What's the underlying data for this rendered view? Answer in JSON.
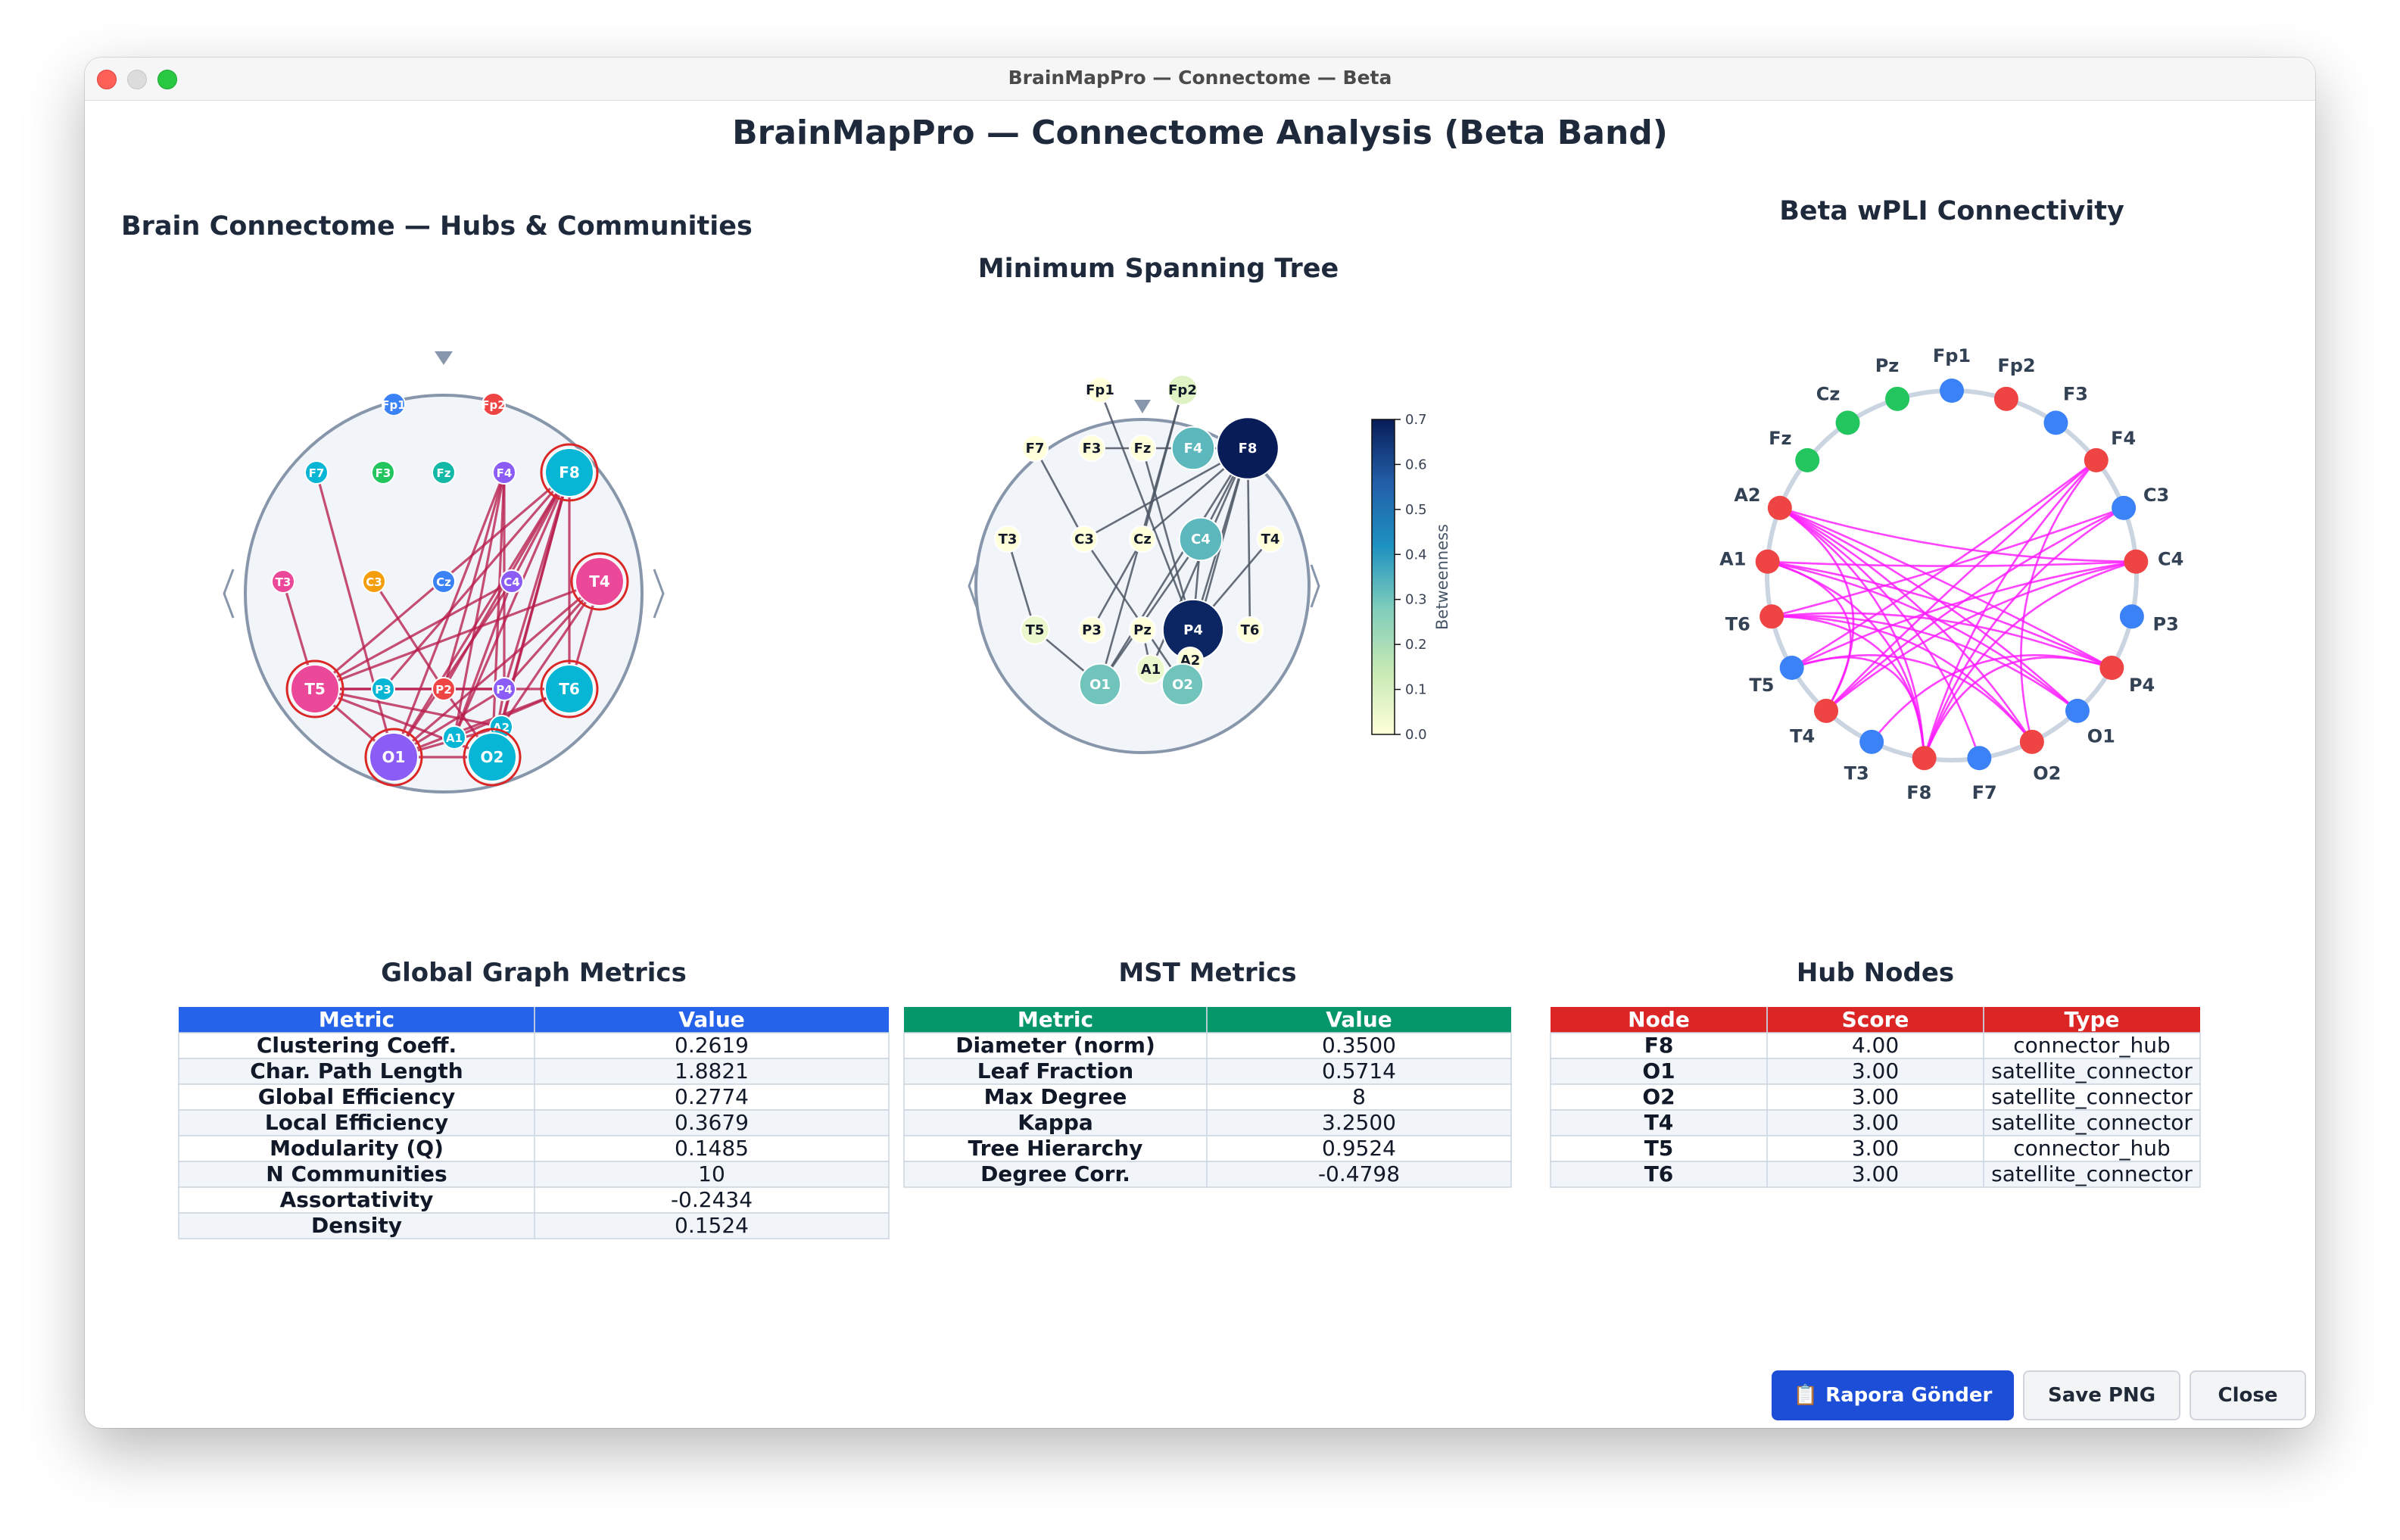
{
  "window": {
    "title": "BrainMapPro — Connectome — Beta"
  },
  "main_title": "BrainMapPro — Connectome Analysis  (Beta Band)",
  "panels": {
    "connectome_title": "Brain Connectome — Hubs & Communities",
    "mst_title": "Minimum Spanning Tree",
    "wpli_title": "Beta wPLI Connectivity"
  },
  "colorbar": {
    "label": "Betweenness",
    "ticks": [
      "0.7",
      "0.6",
      "0.5",
      "0.4",
      "0.3",
      "0.2",
      "0.1",
      "0.0"
    ]
  },
  "connectome_nodes": [
    {
      "label": "Fp1",
      "color": "#3b82f6",
      "hub": false
    },
    {
      "label": "Fp2",
      "color": "#ef4444",
      "hub": false
    },
    {
      "label": "F7",
      "color": "#06b6d4",
      "hub": false
    },
    {
      "label": "F3",
      "color": "#22c55e",
      "hub": false
    },
    {
      "label": "Fz",
      "color": "#14b8a6",
      "hub": false
    },
    {
      "label": "F4",
      "color": "#8b5cf6",
      "hub": false
    },
    {
      "label": "F8",
      "color": "#06b6d4",
      "hub": true
    },
    {
      "label": "T3",
      "color": "#ec4899",
      "hub": false
    },
    {
      "label": "C3",
      "color": "#f59e0b",
      "hub": false
    },
    {
      "label": "Cz",
      "color": "#3b82f6",
      "hub": false
    },
    {
      "label": "C4",
      "color": "#8b5cf6",
      "hub": false
    },
    {
      "label": "T4",
      "color": "#ec4899",
      "hub": true
    },
    {
      "label": "T5",
      "color": "#ec4899",
      "hub": true
    },
    {
      "label": "P3",
      "color": "#06b6d4",
      "hub": false
    },
    {
      "label": "P2",
      "color": "#ef4444",
      "hub": false
    },
    {
      "label": "P4",
      "color": "#8b5cf6",
      "hub": false
    },
    {
      "label": "T6",
      "color": "#06b6d4",
      "hub": true
    },
    {
      "label": "A2",
      "color": "#06b6d4",
      "hub": false
    },
    {
      "label": "A1",
      "color": "#06b6d4",
      "hub": false
    },
    {
      "label": "O1",
      "color": "#8b5cf6",
      "hub": true
    },
    {
      "label": "O2",
      "color": "#06b6d4",
      "hub": true
    }
  ],
  "mst_nodes": [
    {
      "label": "Fp1",
      "betweenness": 0.0
    },
    {
      "label": "Fp2",
      "betweenness": 0.08
    },
    {
      "label": "F7",
      "betweenness": 0.0
    },
    {
      "label": "F3",
      "betweenness": 0.0
    },
    {
      "label": "Fz",
      "betweenness": 0.0
    },
    {
      "label": "F4",
      "betweenness": 0.33
    },
    {
      "label": "F8",
      "betweenness": 0.7
    },
    {
      "label": "T3",
      "betweenness": 0.0
    },
    {
      "label": "C3",
      "betweenness": 0.0
    },
    {
      "label": "Cz",
      "betweenness": 0.0
    },
    {
      "label": "C4",
      "betweenness": 0.33
    },
    {
      "label": "T4",
      "betweenness": 0.0
    },
    {
      "label": "T5",
      "betweenness": 0.05
    },
    {
      "label": "P3",
      "betweenness": 0.0
    },
    {
      "label": "Pz",
      "betweenness": 0.0
    },
    {
      "label": "P4",
      "betweenness": 0.68
    },
    {
      "label": "T6",
      "betweenness": 0.0
    },
    {
      "label": "A1",
      "betweenness": 0.05
    },
    {
      "label": "A2",
      "betweenness": 0.0
    },
    {
      "label": "O1",
      "betweenness": 0.3
    },
    {
      "label": "O2",
      "betweenness": 0.3
    }
  ],
  "wpli_nodes": [
    {
      "label": "Fp1",
      "color": "#3b82f6"
    },
    {
      "label": "Fp2",
      "color": "#ef4444"
    },
    {
      "label": "F3",
      "color": "#3b82f6"
    },
    {
      "label": "F4",
      "color": "#ef4444"
    },
    {
      "label": "C3",
      "color": "#3b82f6"
    },
    {
      "label": "C4",
      "color": "#ef4444"
    },
    {
      "label": "P3",
      "color": "#3b82f6"
    },
    {
      "label": "P4",
      "color": "#ef4444"
    },
    {
      "label": "O1",
      "color": "#3b82f6"
    },
    {
      "label": "O2",
      "color": "#ef4444"
    },
    {
      "label": "F7",
      "color": "#3b82f6"
    },
    {
      "label": "F8",
      "color": "#ef4444"
    },
    {
      "label": "T3",
      "color": "#3b82f6"
    },
    {
      "label": "T4",
      "color": "#ef4444"
    },
    {
      "label": "T5",
      "color": "#3b82f6"
    },
    {
      "label": "T6",
      "color": "#ef4444"
    },
    {
      "label": "A1",
      "color": "#ef4444"
    },
    {
      "label": "A2",
      "color": "#ef4444"
    },
    {
      "label": "Fz",
      "color": "#22c55e"
    },
    {
      "label": "Cz",
      "color": "#22c55e"
    },
    {
      "label": "Pz",
      "color": "#22c55e"
    }
  ],
  "tables": {
    "global": {
      "title": "Global Graph Metrics",
      "header_color": "#2563eb",
      "headers": [
        "Metric",
        "Value"
      ],
      "rows": [
        [
          "Clustering Coeff.",
          "0.2619"
        ],
        [
          "Char. Path Length",
          "1.8821"
        ],
        [
          "Global Efficiency",
          "0.2774"
        ],
        [
          "Local Efficiency",
          "0.3679"
        ],
        [
          "Modularity (Q)",
          "0.1485"
        ],
        [
          "N Communities",
          "10"
        ],
        [
          "Assortativity",
          "-0.2434"
        ],
        [
          "Density",
          "0.1524"
        ]
      ]
    },
    "mst": {
      "title": "MST Metrics",
      "header_color": "#059669",
      "headers": [
        "Metric",
        "Value"
      ],
      "rows": [
        [
          "Diameter (norm)",
          "0.3500"
        ],
        [
          "Leaf Fraction",
          "0.5714"
        ],
        [
          "Max Degree",
          "8"
        ],
        [
          "Kappa",
          "3.2500"
        ],
        [
          "Tree Hierarchy",
          "0.9524"
        ],
        [
          "Degree Corr.",
          "-0.4798"
        ]
      ]
    },
    "hubs": {
      "title": "Hub Nodes",
      "header_color": "#dc2626",
      "headers": [
        "Node",
        "Score",
        "Type"
      ],
      "rows": [
        [
          "F8",
          "4.00",
          "connector_hub"
        ],
        [
          "O1",
          "3.00",
          "satellite_connector"
        ],
        [
          "O2",
          "3.00",
          "satellite_connector"
        ],
        [
          "T4",
          "3.00",
          "satellite_connector"
        ],
        [
          "T5",
          "3.00",
          "connector_hub"
        ],
        [
          "T6",
          "3.00",
          "satellite_connector"
        ]
      ]
    }
  },
  "buttons": {
    "report_icon": "clipboard-icon",
    "report_label": "Rapora Gönder",
    "save_label": "Save PNG",
    "close_label": "Close"
  },
  "colors": {
    "edge_connectome": "#b91c4b",
    "edge_mst": "#4b5563",
    "edge_wpli": "#ff1aff",
    "head_fill": "#f1f5f9",
    "head_stroke": "#8896ab"
  }
}
